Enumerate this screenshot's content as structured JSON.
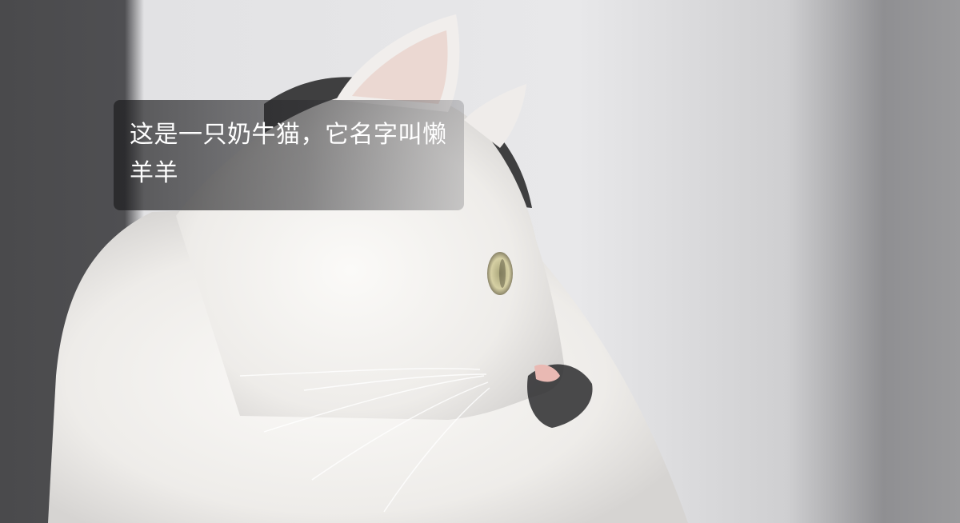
{
  "caption": {
    "text": "这是一只奶牛猫，它名字叫懒羊羊"
  },
  "scene": {
    "subject": "cat-photo",
    "colors": {
      "background_wall": "#e6e6e8",
      "left_shadow": "#3a3a3c",
      "right_shadow": "#8a8a8c",
      "cat_fur": "#f4f2f0",
      "cat_patch": "#2a2a2c",
      "eye": "#c9c39a",
      "nose": "#e6b7b2"
    }
  }
}
